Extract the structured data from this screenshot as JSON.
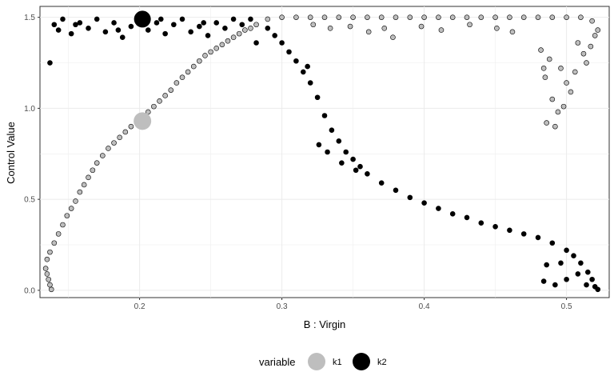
{
  "chart_data": {
    "type": "scatter",
    "title": "",
    "xlabel": "B : Virgin",
    "ylabel": "Control Value",
    "xlim": [
      0.13,
      0.53
    ],
    "ylim": [
      -0.04,
      1.56
    ],
    "x_ticks": [
      0.2,
      0.3,
      0.4,
      0.5
    ],
    "x_tick_labels": [
      "0.2",
      "0.3",
      "0.4",
      "0.5"
    ],
    "y_ticks": [
      0.0,
      0.5,
      1.0,
      1.5
    ],
    "y_tick_labels": [
      "0.0",
      "0.5",
      "1.0",
      "1.5"
    ],
    "grid": true,
    "legend": {
      "position": "bottom",
      "title": "variable",
      "entries": [
        {
          "label": "k1",
          "color": "#bebebe"
        },
        {
          "label": "k2",
          "color": "#000000"
        }
      ]
    },
    "highlight_points": [
      {
        "series": "k1",
        "x": 0.202,
        "y": 0.93
      },
      {
        "series": "k2",
        "x": 0.202,
        "y": 1.49
      }
    ],
    "series": [
      {
        "name": "k1",
        "color": "#bebebe",
        "stroke": "#000000",
        "points": [
          [
            0.138,
            0.005
          ],
          [
            0.137,
            0.03
          ],
          [
            0.136,
            0.06
          ],
          [
            0.135,
            0.09
          ],
          [
            0.134,
            0.12
          ],
          [
            0.135,
            0.17
          ],
          [
            0.137,
            0.21
          ],
          [
            0.14,
            0.26
          ],
          [
            0.143,
            0.31
          ],
          [
            0.146,
            0.36
          ],
          [
            0.149,
            0.41
          ],
          [
            0.152,
            0.45
          ],
          [
            0.155,
            0.49
          ],
          [
            0.158,
            0.54
          ],
          [
            0.161,
            0.58
          ],
          [
            0.164,
            0.62
          ],
          [
            0.167,
            0.66
          ],
          [
            0.17,
            0.7
          ],
          [
            0.174,
            0.74
          ],
          [
            0.178,
            0.78
          ],
          [
            0.182,
            0.81
          ],
          [
            0.186,
            0.84
          ],
          [
            0.19,
            0.87
          ],
          [
            0.194,
            0.9
          ],
          [
            0.198,
            0.92
          ],
          [
            0.202,
            0.95
          ],
          [
            0.206,
            0.98
          ],
          [
            0.21,
            1.01
          ],
          [
            0.214,
            1.04
          ],
          [
            0.218,
            1.07
          ],
          [
            0.222,
            1.1
          ],
          [
            0.226,
            1.14
          ],
          [
            0.23,
            1.17
          ],
          [
            0.234,
            1.2
          ],
          [
            0.238,
            1.23
          ],
          [
            0.242,
            1.26
          ],
          [
            0.246,
            1.29
          ],
          [
            0.25,
            1.31
          ],
          [
            0.254,
            1.33
          ],
          [
            0.258,
            1.35
          ],
          [
            0.262,
            1.37
          ],
          [
            0.266,
            1.39
          ],
          [
            0.27,
            1.41
          ],
          [
            0.274,
            1.43
          ],
          [
            0.278,
            1.44
          ],
          [
            0.282,
            1.46
          ],
          [
            0.29,
            1.49
          ],
          [
            0.3,
            1.5
          ],
          [
            0.31,
            1.5
          ],
          [
            0.32,
            1.5
          ],
          [
            0.33,
            1.5
          ],
          [
            0.34,
            1.5
          ],
          [
            0.35,
            1.5
          ],
          [
            0.36,
            1.5
          ],
          [
            0.37,
            1.5
          ],
          [
            0.38,
            1.5
          ],
          [
            0.39,
            1.5
          ],
          [
            0.4,
            1.5
          ],
          [
            0.41,
            1.5
          ],
          [
            0.42,
            1.5
          ],
          [
            0.43,
            1.5
          ],
          [
            0.44,
            1.5
          ],
          [
            0.45,
            1.5
          ],
          [
            0.46,
            1.5
          ],
          [
            0.47,
            1.5
          ],
          [
            0.48,
            1.5
          ],
          [
            0.49,
            1.5
          ],
          [
            0.5,
            1.5
          ],
          [
            0.51,
            1.5
          ],
          [
            0.518,
            1.48
          ],
          [
            0.322,
            1.46
          ],
          [
            0.334,
            1.44
          ],
          [
            0.348,
            1.45
          ],
          [
            0.361,
            1.42
          ],
          [
            0.372,
            1.44
          ],
          [
            0.378,
            1.39
          ],
          [
            0.398,
            1.45
          ],
          [
            0.412,
            1.43
          ],
          [
            0.432,
            1.46
          ],
          [
            0.451,
            1.44
          ],
          [
            0.462,
            1.42
          ],
          [
            0.482,
            1.32
          ],
          [
            0.488,
            1.27
          ],
          [
            0.485,
            1.17
          ],
          [
            0.49,
            1.05
          ],
          [
            0.494,
            0.98
          ],
          [
            0.486,
            0.92
          ],
          [
            0.492,
            0.9
          ],
          [
            0.498,
            1.01
          ],
          [
            0.503,
            1.09
          ],
          [
            0.506,
            1.2
          ],
          [
            0.512,
            1.3
          ],
          [
            0.517,
            1.34
          ],
          [
            0.52,
            1.4
          ],
          [
            0.496,
            1.22
          ],
          [
            0.508,
            1.36
          ],
          [
            0.514,
            1.25
          ],
          [
            0.522,
            1.43
          ],
          [
            0.5,
            1.14
          ],
          [
            0.484,
            1.22
          ]
        ]
      },
      {
        "name": "k2",
        "color": "#000000",
        "stroke": "#000000",
        "points": [
          [
            0.14,
            1.46
          ],
          [
            0.146,
            1.49
          ],
          [
            0.152,
            1.41
          ],
          [
            0.158,
            1.47
          ],
          [
            0.164,
            1.44
          ],
          [
            0.17,
            1.49
          ],
          [
            0.176,
            1.42
          ],
          [
            0.182,
            1.47
          ],
          [
            0.188,
            1.39
          ],
          [
            0.194,
            1.45
          ],
          [
            0.2,
            1.48
          ],
          [
            0.206,
            1.43
          ],
          [
            0.212,
            1.47
          ],
          [
            0.218,
            1.41
          ],
          [
            0.224,
            1.46
          ],
          [
            0.23,
            1.49
          ],
          [
            0.236,
            1.42
          ],
          [
            0.242,
            1.45
          ],
          [
            0.248,
            1.4
          ],
          [
            0.254,
            1.47
          ],
          [
            0.26,
            1.44
          ],
          [
            0.266,
            1.49
          ],
          [
            0.272,
            1.46
          ],
          [
            0.278,
            1.49
          ],
          [
            0.137,
            1.25
          ],
          [
            0.143,
            1.43
          ],
          [
            0.155,
            1.46
          ],
          [
            0.185,
            1.43
          ],
          [
            0.215,
            1.49
          ],
          [
            0.245,
            1.47
          ],
          [
            0.29,
            1.44
          ],
          [
            0.295,
            1.4
          ],
          [
            0.3,
            1.36
          ],
          [
            0.305,
            1.31
          ],
          [
            0.31,
            1.26
          ],
          [
            0.315,
            1.2
          ],
          [
            0.32,
            1.14
          ],
          [
            0.325,
            1.06
          ],
          [
            0.33,
            0.96
          ],
          [
            0.335,
            0.88
          ],
          [
            0.34,
            0.82
          ],
          [
            0.345,
            0.76
          ],
          [
            0.35,
            0.72
          ],
          [
            0.355,
            0.68
          ],
          [
            0.36,
            0.64
          ],
          [
            0.37,
            0.59
          ],
          [
            0.38,
            0.55
          ],
          [
            0.39,
            0.51
          ],
          [
            0.4,
            0.48
          ],
          [
            0.41,
            0.45
          ],
          [
            0.42,
            0.42
          ],
          [
            0.43,
            0.4
          ],
          [
            0.44,
            0.37
          ],
          [
            0.45,
            0.35
          ],
          [
            0.46,
            0.33
          ],
          [
            0.47,
            0.31
          ],
          [
            0.48,
            0.29
          ],
          [
            0.49,
            0.26
          ],
          [
            0.5,
            0.22
          ],
          [
            0.505,
            0.19
          ],
          [
            0.51,
            0.15
          ],
          [
            0.515,
            0.1
          ],
          [
            0.518,
            0.06
          ],
          [
            0.52,
            0.02
          ],
          [
            0.522,
            0.005
          ],
          [
            0.282,
            1.36
          ],
          [
            0.318,
            1.23
          ],
          [
            0.326,
            0.8
          ],
          [
            0.332,
            0.76
          ],
          [
            0.342,
            0.7
          ],
          [
            0.352,
            0.66
          ],
          [
            0.484,
            0.05
          ],
          [
            0.492,
            0.03
          ],
          [
            0.5,
            0.06
          ],
          [
            0.508,
            0.09
          ],
          [
            0.514,
            0.03
          ],
          [
            0.486,
            0.14
          ],
          [
            0.496,
            0.15
          ]
        ]
      }
    ]
  }
}
